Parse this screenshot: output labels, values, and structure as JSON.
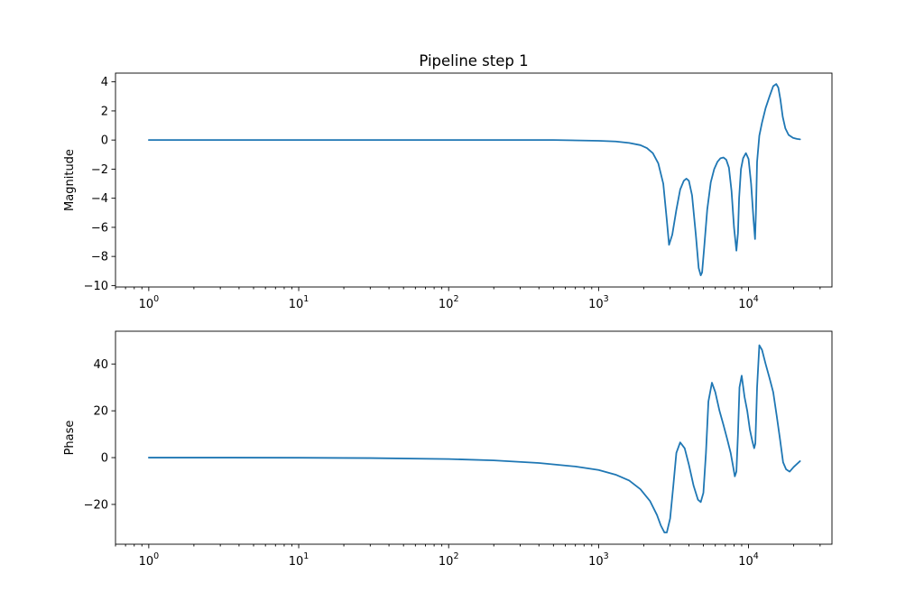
{
  "figure": {
    "title": "Pipeline step 1"
  },
  "colors": {
    "line": "#1f77b4",
    "background": "#ffffff"
  },
  "chart_data": [
    {
      "type": "line",
      "title": "Pipeline step 1",
      "xlabel": "",
      "ylabel": "Magnitude",
      "xscale": "log",
      "xlim": [
        0.6,
        36000
      ],
      "ylim": [
        -10.1,
        4.6
      ],
      "xticks": [
        {
          "value": 1,
          "mantissa": "10",
          "exp": "0"
        },
        {
          "value": 10,
          "mantissa": "10",
          "exp": "1"
        },
        {
          "value": 100,
          "mantissa": "10",
          "exp": "2"
        },
        {
          "value": 1000,
          "mantissa": "10",
          "exp": "3"
        },
        {
          "value": 10000,
          "mantissa": "10",
          "exp": "4"
        }
      ],
      "yticks": [
        {
          "value": 4,
          "label": "4"
        },
        {
          "value": 2,
          "label": "2"
        },
        {
          "value": 0,
          "label": "0"
        },
        {
          "value": -2,
          "label": "−2"
        },
        {
          "value": -4,
          "label": "−4"
        },
        {
          "value": -6,
          "label": "−6"
        },
        {
          "value": -8,
          "label": "−8"
        },
        {
          "value": -10,
          "label": "−10"
        }
      ],
      "grid": false,
      "series": [
        {
          "x": [
            1,
            10,
            100,
            500,
            1000,
            1300,
            1600,
            1900,
            2100,
            2300,
            2500,
            2700,
            2850,
            2950,
            3100,
            3300,
            3500,
            3700,
            3850,
            4000,
            4200,
            4450,
            4650,
            4800,
            4900,
            5050,
            5300,
            5600,
            5900,
            6200,
            6500,
            6800,
            7100,
            7400,
            7700,
            8000,
            8300,
            8500,
            8650,
            8900,
            9200,
            9600,
            10000,
            10400,
            10800,
            11050,
            11200,
            11400,
            11800,
            12300,
            13000,
            13800,
            14600,
            15300,
            15800,
            16300,
            16900,
            17600,
            18500,
            19800,
            21000,
            22050
          ],
          "y": [
            0,
            0,
            0,
            0,
            -0.05,
            -0.1,
            -0.2,
            -0.35,
            -0.55,
            -0.9,
            -1.6,
            -3.0,
            -5.5,
            -7.2,
            -6.5,
            -4.8,
            -3.4,
            -2.8,
            -2.65,
            -2.8,
            -3.8,
            -6.5,
            -8.8,
            -9.3,
            -9.1,
            -7.5,
            -4.8,
            -2.9,
            -2.0,
            -1.5,
            -1.25,
            -1.2,
            -1.35,
            -1.9,
            -3.5,
            -6.0,
            -7.6,
            -6.4,
            -4.0,
            -2.0,
            -1.25,
            -0.9,
            -1.3,
            -3.0,
            -5.5,
            -6.8,
            -5.0,
            -1.5,
            0.3,
            1.2,
            2.2,
            3.0,
            3.7,
            3.85,
            3.6,
            2.8,
            1.6,
            0.8,
            0.35,
            0.15,
            0.08,
            0.05
          ]
        }
      ]
    },
    {
      "type": "line",
      "title": "",
      "xlabel": "",
      "ylabel": "Phase",
      "xscale": "log",
      "xlim": [
        0.6,
        36000
      ],
      "ylim": [
        -37,
        54
      ],
      "xticks": [
        {
          "value": 1,
          "mantissa": "10",
          "exp": "0"
        },
        {
          "value": 10,
          "mantissa": "10",
          "exp": "1"
        },
        {
          "value": 100,
          "mantissa": "10",
          "exp": "2"
        },
        {
          "value": 1000,
          "mantissa": "10",
          "exp": "3"
        },
        {
          "value": 10000,
          "mantissa": "10",
          "exp": "4"
        }
      ],
      "yticks": [
        {
          "value": 40,
          "label": "40"
        },
        {
          "value": 20,
          "label": "20"
        },
        {
          "value": 0,
          "label": "0"
        },
        {
          "value": -20,
          "label": "−20"
        }
      ],
      "grid": false,
      "series": [
        {
          "x": [
            1,
            3,
            10,
            30,
            100,
            200,
            400,
            700,
            1000,
            1300,
            1600,
            1900,
            2200,
            2450,
            2600,
            2750,
            2850,
            3000,
            3150,
            3300,
            3500,
            3750,
            4000,
            4300,
            4600,
            4800,
            5000,
            5200,
            5400,
            5700,
            6000,
            6400,
            6800,
            7200,
            7600,
            7900,
            8100,
            8300,
            8500,
            8700,
            9000,
            9400,
            9800,
            10200,
            10600,
            10900,
            11100,
            11400,
            11800,
            12300,
            13000,
            13800,
            14600,
            15400,
            16200,
            17000,
            17800,
            18800,
            20000,
            21200,
            22050
          ],
          "y": [
            0,
            0,
            -0.05,
            -0.2,
            -0.6,
            -1.2,
            -2.3,
            -3.8,
            -5.3,
            -7.3,
            -9.8,
            -13.5,
            -18.5,
            -24.5,
            -29,
            -32,
            -32,
            -26,
            -12,
            2,
            6.5,
            4,
            -3,
            -12,
            -18,
            -19,
            -15,
            2,
            24,
            32,
            28,
            20,
            14,
            8,
            2,
            -4,
            -8,
            -6,
            10,
            30,
            35,
            26,
            20,
            12,
            7,
            4,
            6,
            30,
            48,
            46,
            40,
            34,
            28,
            18,
            8,
            -2,
            -5,
            -6,
            -4,
            -2.5,
            -1.5
          ]
        }
      ]
    }
  ]
}
